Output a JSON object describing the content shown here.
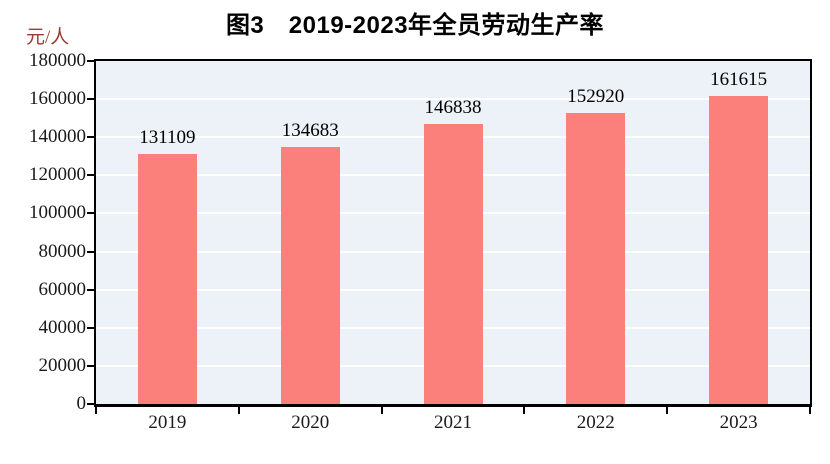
{
  "title": "图3　2019-2023年全员劳动生产率",
  "y_unit_label": "元/人",
  "colors": {
    "bar": "#FB7F7B",
    "plot_bg": "#ECF2F7",
    "gridline": "#FFFFFF",
    "axis": "#000000",
    "unit_label": "#9A3B30",
    "tick_text": "#1A1A1A"
  },
  "chart_data": {
    "type": "bar",
    "title": "图3　2019-2023年全员劳动生产率",
    "categories": [
      "2019",
      "2020",
      "2021",
      "2022",
      "2023"
    ],
    "values": [
      131109,
      134683,
      146838,
      152920,
      161615
    ],
    "bar_labels": [
      "131109",
      "134683",
      "146838",
      "152920",
      "161615"
    ],
    "xlabel": "",
    "ylabel": "元/人",
    "ylim": [
      0,
      180000
    ],
    "ytick_step": 20000,
    "ytick_labels": [
      "0",
      "20000",
      "40000",
      "60000",
      "80000",
      "100000",
      "120000",
      "140000",
      "160000",
      "180000"
    ],
    "grid": true,
    "legend_position": "none"
  }
}
